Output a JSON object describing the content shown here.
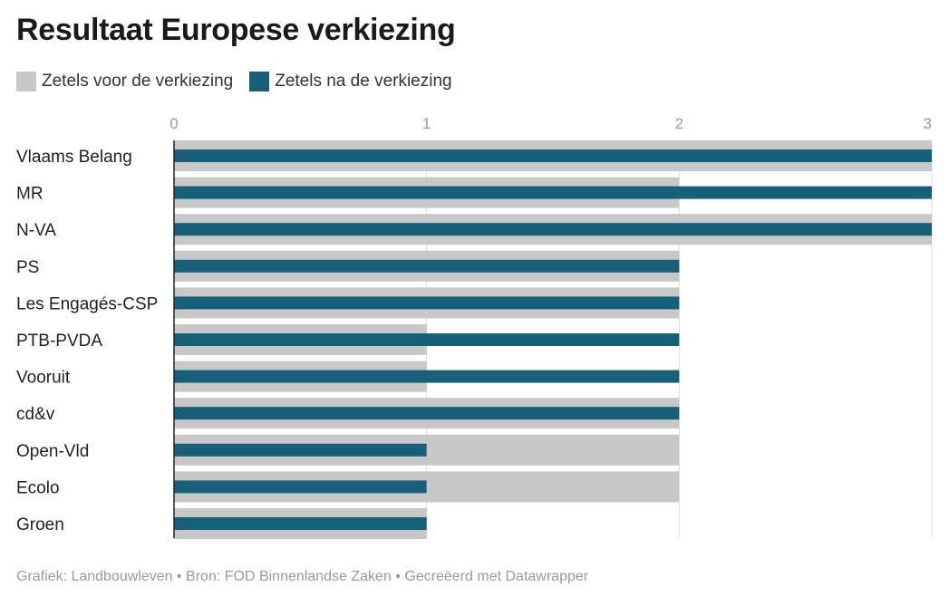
{
  "chart_data": {
    "type": "bar",
    "orientation": "horizontal",
    "title": "Resultaat Europese verkiezing",
    "categories": [
      "Vlaams Belang",
      "MR",
      "N-VA",
      "PS",
      "Les Engagés-CSP",
      "PTB-PVDA",
      "Vooruit",
      "cd&v",
      "Open-Vld",
      "Ecolo",
      "Groen"
    ],
    "series": [
      {
        "name": "Zetels voor de verkiezing",
        "color": "#c8c8c8",
        "values": [
          3,
          2,
          3,
          2,
          2,
          1,
          1,
          2,
          2,
          2,
          1
        ]
      },
      {
        "name": "Zetels na de verkiezing",
        "color": "#17607a",
        "values": [
          3,
          3,
          3,
          2,
          2,
          2,
          2,
          2,
          1,
          1,
          1
        ]
      }
    ],
    "xlim": [
      0,
      3
    ],
    "xticks": [
      "0",
      "1",
      "2",
      "3"
    ],
    "grid": true,
    "legend": "top-left"
  },
  "footer": "Grafiek: Landbouwleven • Bron: FOD Binnenlandse Zaken • Gecreëerd met Datawrapper"
}
